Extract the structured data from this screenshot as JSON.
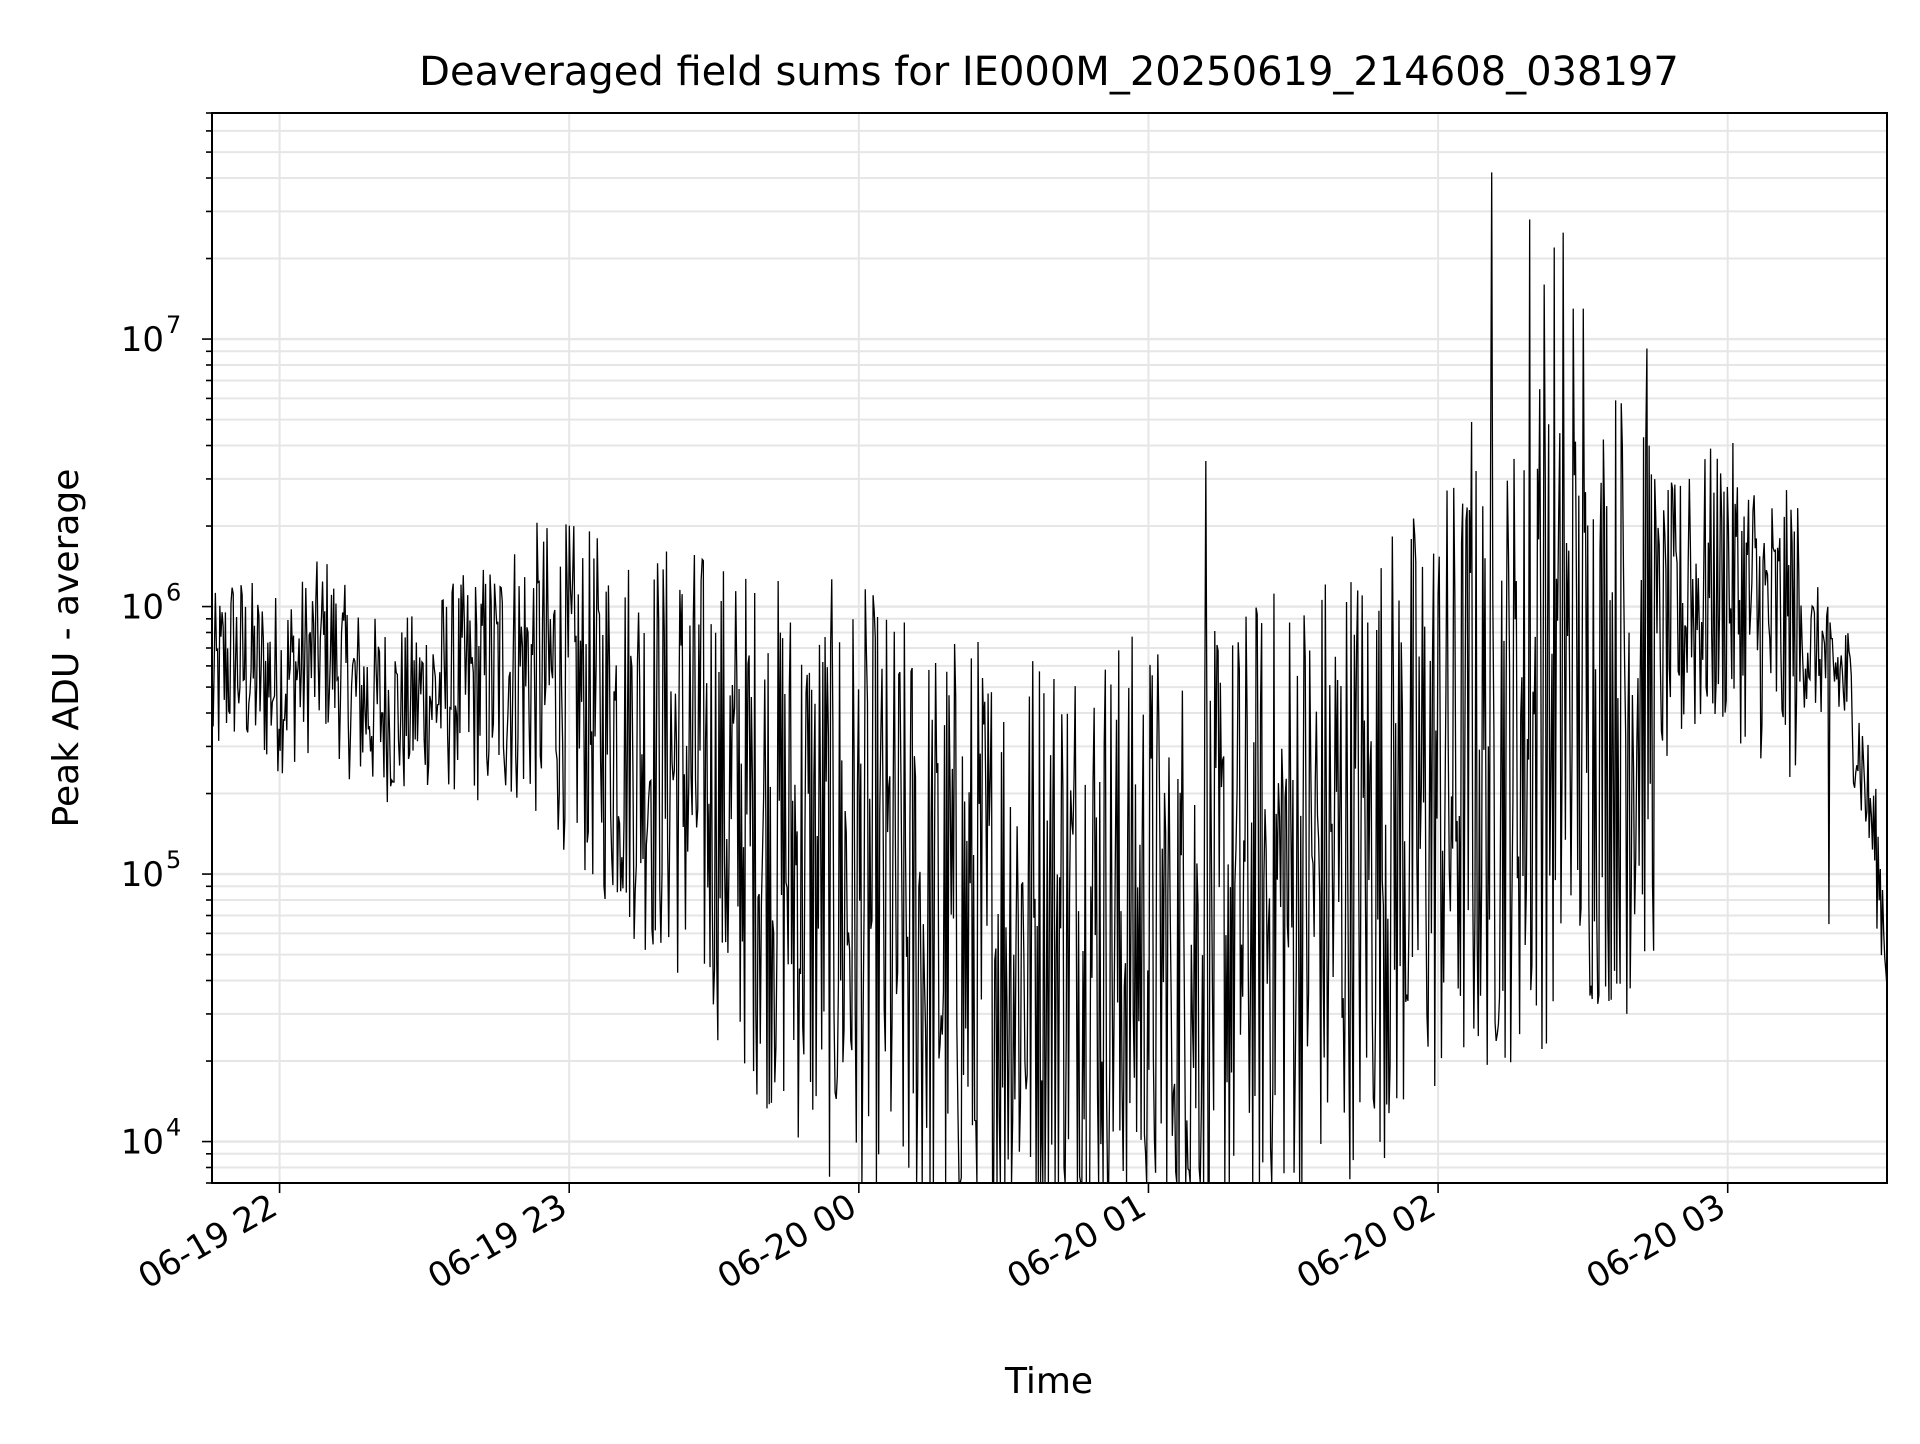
{
  "chart_data": {
    "type": "line",
    "title": "Deaveraged field sums for IE000M_20250619_214608_038197",
    "xlabel": "Time",
    "ylabel": "Peak ADU - average",
    "xscale": "time",
    "yscale": "log",
    "xlim": [
      "2025-06-19 21:46",
      "2025-06-20 03:33"
    ],
    "ylim": [
      7000,
      70000000
    ],
    "grid": true,
    "legend": "none",
    "x_ticks": [
      "06-19 22",
      "06-19 23",
      "06-20 00",
      "06-20 01",
      "06-20 02",
      "06-20 03"
    ],
    "y_ticks": [
      {
        "base": "10",
        "exp": "4",
        "value": 10000
      },
      {
        "base": "10",
        "exp": "5",
        "value": 100000
      },
      {
        "base": "10",
        "exp": "6",
        "value": 1000000
      },
      {
        "base": "10",
        "exp": "7",
        "value": 10000000
      }
    ],
    "colors": {
      "line": "#000000",
      "grid": "#e6e6e6"
    },
    "series": [
      {
        "values": [
          [
            "2025-06-19 21:46",
            480000
          ],
          [
            "2025-06-19 21:50",
            650000
          ],
          [
            "2025-06-19 21:55",
            560000
          ],
          [
            "2025-06-19 22:00",
            520000
          ],
          [
            "2025-06-19 22:05",
            600000
          ],
          [
            "2025-06-19 22:10",
            720000
          ],
          [
            "2025-06-19 22:15",
            480000
          ],
          [
            "2025-06-19 22:20",
            420000
          ],
          [
            "2025-06-19 22:25",
            400000
          ],
          [
            "2025-06-19 22:30",
            460000
          ],
          [
            "2025-06-19 22:35",
            500000
          ],
          [
            "2025-06-19 22:40",
            500000
          ],
          [
            "2025-06-19 22:45",
            550000
          ],
          [
            "2025-06-19 22:50",
            600000
          ],
          [
            "2025-06-19 22:55",
            550000
          ],
          [
            "2025-06-19 23:00",
            500000
          ],
          [
            "2025-06-19 23:05",
            400000
          ],
          [
            "2025-06-19 23:10",
            350000
          ],
          [
            "2025-06-19 23:15",
            300000
          ],
          [
            "2025-06-19 23:20",
            280000
          ],
          [
            "2025-06-19 23:25",
            250000
          ],
          [
            "2025-06-19 23:30",
            200000
          ],
          [
            "2025-06-19 23:35",
            170000
          ],
          [
            "2025-06-19 23:40",
            140000
          ],
          [
            "2025-06-19 23:45",
            120000
          ],
          [
            "2025-06-19 23:50",
            100000
          ],
          [
            "2025-06-19 23:55",
            90000
          ],
          [
            "2025-06-20 00:00",
            80000
          ],
          [
            "2025-06-20 00:05",
            70000
          ],
          [
            "2025-06-20 00:10",
            60000
          ],
          [
            "2025-06-20 00:15",
            55000
          ],
          [
            "2025-06-20 00:20",
            55000
          ],
          [
            "2025-06-20 00:25",
            55000
          ],
          [
            "2025-06-20 00:30",
            55000
          ],
          [
            "2025-06-20 00:35",
            55000
          ],
          [
            "2025-06-20 00:40",
            60000
          ],
          [
            "2025-06-20 00:45",
            60000
          ],
          [
            "2025-06-20 00:50",
            60000
          ],
          [
            "2025-06-20 00:55",
            55000
          ],
          [
            "2025-06-20 01:00",
            55000
          ],
          [
            "2025-06-20 01:05",
            50000
          ],
          [
            "2025-06-20 01:10",
            45000
          ],
          [
            "2025-06-20 01:15",
            55000
          ],
          [
            "2025-06-20 01:20",
            70000
          ],
          [
            "2025-06-20 01:25",
            80000
          ],
          [
            "2025-06-20 01:30",
            90000
          ],
          [
            "2025-06-20 01:35",
            100000
          ],
          [
            "2025-06-20 01:40",
            110000
          ],
          [
            "2025-06-20 01:45",
            120000
          ],
          [
            "2025-06-20 01:50",
            140000
          ],
          [
            "2025-06-20 01:55",
            160000
          ],
          [
            "2025-06-20 02:00",
            200000
          ],
          [
            "2025-06-20 02:05",
            230000
          ],
          [
            "2025-06-20 02:10",
            260000
          ],
          [
            "2025-06-20 02:15",
            300000
          ],
          [
            "2025-06-20 02:20",
            330000
          ],
          [
            "2025-06-20 02:25",
            380000
          ],
          [
            "2025-06-20 02:30",
            420000
          ],
          [
            "2025-06-20 02:35",
            480000
          ],
          [
            "2025-06-20 02:40",
            550000
          ],
          [
            "2025-06-20 02:45",
            700000
          ],
          [
            "2025-06-20 02:50",
            900000
          ],
          [
            "2025-06-20 02:55",
            1100000
          ],
          [
            "2025-06-20 03:00",
            1200000
          ],
          [
            "2025-06-20 03:05",
            1000000
          ],
          [
            "2025-06-20 03:10",
            800000
          ],
          [
            "2025-06-20 03:15",
            750000
          ],
          [
            "2025-06-20 03:20",
            650000
          ],
          [
            "2025-06-20 03:25",
            500000
          ],
          [
            "2025-06-20 03:30",
            150000
          ],
          [
            "2025-06-20 03:33",
            55000
          ]
        ],
        "peaks": [
          [
            "2025-06-20 01:12",
            3500000
          ],
          [
            "2025-06-20 02:07",
            4900000
          ],
          [
            "2025-06-20 02:11",
            42000000
          ],
          [
            "2025-06-20 02:19",
            28000000
          ],
          [
            "2025-06-20 02:21",
            6500000
          ],
          [
            "2025-06-20 02:22",
            16000000
          ],
          [
            "2025-06-20 02:24",
            22000000
          ],
          [
            "2025-06-20 02:26",
            25000000
          ],
          [
            "2025-06-20 02:28",
            13000000
          ],
          [
            "2025-06-20 02:30",
            13000000
          ],
          [
            "2025-06-20 02:52",
            3000000
          ],
          [
            "2025-06-20 03:00",
            2800000
          ],
          [
            "2025-06-20 03:13",
            2300000
          ]
        ],
        "troughs": [
          [
            "2025-06-20 00:24",
            12000
          ],
          [
            "2025-06-20 00:54",
            11000
          ],
          [
            "2025-06-20 01:05",
            10500
          ],
          [
            "2025-06-20 01:08",
            12000
          ],
          [
            "2025-06-20 01:37",
            14000
          ],
          [
            "2025-06-20 02:39",
            30000
          ],
          [
            "2025-06-20 03:21",
            65000
          ]
        ]
      }
    ]
  }
}
